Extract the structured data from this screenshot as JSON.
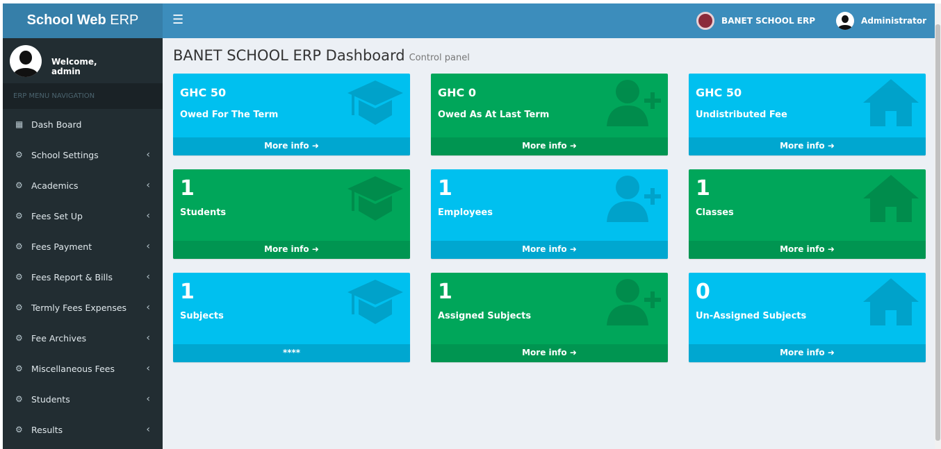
{
  "app": {
    "logo_bold": "School Web",
    "logo_light": " ERP"
  },
  "topbar": {
    "school": "BANET SCHOOL ERP",
    "user": "Administrator"
  },
  "sidebar": {
    "welcome": "Welcome,",
    "username": "admin",
    "header": "ERP MENU NAVIGATION",
    "items": [
      {
        "label": "Dash Board",
        "icon": "grid-icon"
      },
      {
        "label": "School Settings",
        "icon": "cogs-icon"
      },
      {
        "label": "Academics",
        "icon": "cogs-icon"
      },
      {
        "label": "Fees Set Up",
        "icon": "cogs-icon"
      },
      {
        "label": "Fees Payment",
        "icon": "cogs-icon"
      },
      {
        "label": "Fees Report & Bills",
        "icon": "cogs-icon"
      },
      {
        "label": "Termly Fees Expenses",
        "icon": "cogs-icon"
      },
      {
        "label": "Fee Archives",
        "icon": "cogs-icon"
      },
      {
        "label": "Miscellaneous Fees",
        "icon": "cogs-icon"
      },
      {
        "label": "Students",
        "icon": "cogs-icon"
      },
      {
        "label": "Results",
        "icon": "cogs-icon"
      }
    ]
  },
  "page": {
    "title": "BANET SCHOOL ERP Dashboard",
    "subtitle": "Control panel"
  },
  "boxes": [
    {
      "value": "GHC 50",
      "label": "Owed For The Term",
      "footer": "More info",
      "color": "aqua",
      "icon": "graduation-cap-icon"
    },
    {
      "value": "GHC 0",
      "label": "Owed As At Last Term",
      "footer": "More info",
      "color": "green",
      "icon": "user-plus-icon"
    },
    {
      "value": "GHC 50",
      "label": "Undistributed Fee",
      "footer": "More info",
      "color": "aqua",
      "icon": "home-icon"
    },
    {
      "value": "1",
      "label": "Students",
      "footer": "More info",
      "color": "green",
      "icon": "graduation-cap-icon"
    },
    {
      "value": "1",
      "label": "Employees",
      "footer": "More info",
      "color": "aqua",
      "icon": "user-plus-icon"
    },
    {
      "value": "1",
      "label": "Classes",
      "footer": "More info",
      "color": "green",
      "icon": "home-icon"
    },
    {
      "value": "1",
      "label": "Subjects",
      "footer": "****",
      "color": "aqua",
      "icon": "graduation-cap-icon"
    },
    {
      "value": "1",
      "label": "Assigned Subjects",
      "footer": "More info",
      "color": "green",
      "icon": "user-plus-icon"
    },
    {
      "value": "0",
      "label": "Un-Assigned Subjects",
      "footer": "More info",
      "color": "aqua",
      "icon": "home-icon"
    }
  ],
  "colors": {
    "header": "#3c8dbc",
    "logo": "#367fa9",
    "sidebar": "#222d32",
    "aqua": "#00c0ef",
    "green": "#00a65a"
  }
}
